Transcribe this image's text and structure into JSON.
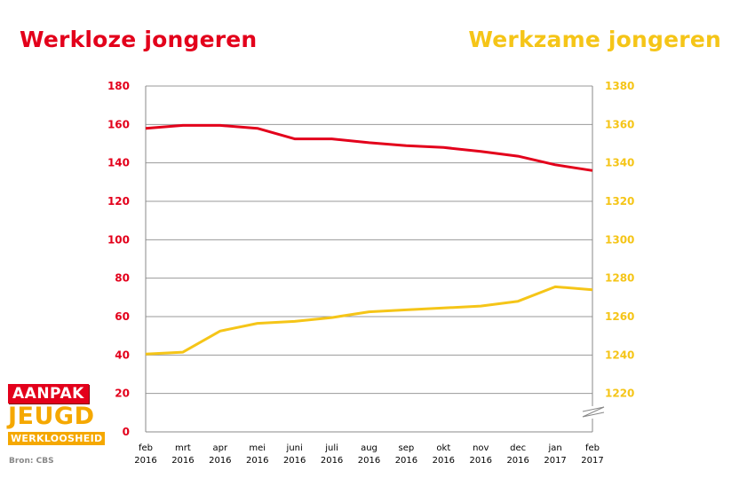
{
  "title_left": "Werkloze jongeren",
  "title_right": "Werkzame jongeren",
  "source": "Bron: CBS",
  "logo": {
    "line1": "AANPAK",
    "line2": "JEUGD",
    "line3": "WERKLOOSHEID"
  },
  "colors": {
    "left_series": "#e3001b",
    "right_series": "#f5c518",
    "grid": "#999999"
  },
  "chart_data": {
    "type": "line",
    "title": "",
    "categories": [
      [
        "feb",
        "2016"
      ],
      [
        "mrt",
        "2016"
      ],
      [
        "apr",
        "2016"
      ],
      [
        "mei",
        "2016"
      ],
      [
        "juni",
        "2016"
      ],
      [
        "juli",
        "2016"
      ],
      [
        "aug",
        "2016"
      ],
      [
        "sep",
        "2016"
      ],
      [
        "okt",
        "2016"
      ],
      [
        "nov",
        "2016"
      ],
      [
        "dec",
        "2016"
      ],
      [
        "jan",
        "2017"
      ],
      [
        "feb",
        "2017"
      ]
    ],
    "y_left": {
      "min": 0,
      "max": 180,
      "ticks": [
        0,
        20,
        40,
        60,
        80,
        100,
        120,
        140,
        160,
        180
      ]
    },
    "y_right": {
      "min": 1200,
      "max": 1380,
      "ticks": [
        1220,
        1240,
        1260,
        1280,
        1300,
        1320,
        1340,
        1360,
        1380
      ],
      "broken_axis": true
    },
    "grid": true,
    "series": [
      {
        "axis": "left",
        "values": [
          158,
          159.5,
          159.5,
          158,
          152.5,
          152.5,
          150.5,
          149,
          148,
          146,
          143.5,
          139,
          136
        ]
      },
      {
        "axis": "right",
        "values": [
          1240.5,
          1241.5,
          1252.5,
          1256.5,
          1257.5,
          1259.5,
          1262.5,
          1263.5,
          1264.5,
          1265.5,
          1268,
          1275.5,
          1274
        ]
      }
    ]
  }
}
